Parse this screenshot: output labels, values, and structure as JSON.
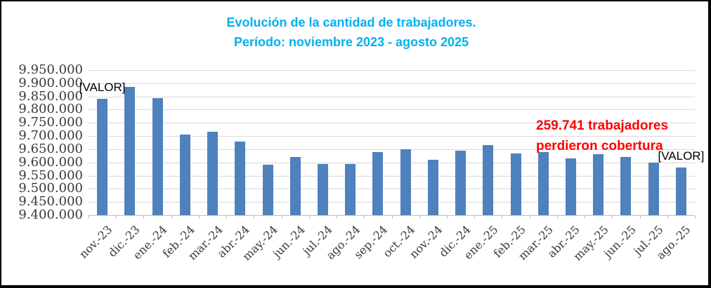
{
  "chart_data": {
    "type": "bar",
    "title_lines": [
      "Evolución de la cantidad de trabajadores.",
      "Período: noviembre 2023 - agosto 2025"
    ],
    "title_color": "#00B0F0",
    "bar_color": "#4F81BD",
    "gridline_color": "#D9D9D9",
    "axis_color": "#BFBFBF",
    "grid": true,
    "legend": "none",
    "categories": [
      "nov.-23",
      "dic.-23",
      "ene.-24",
      "feb.-24",
      "mar.-24",
      "abr.-24",
      "may.-24",
      "jun.-24",
      "jul.-24",
      "ago.-24",
      "sep.-24",
      "oct.-24",
      "nov.-24",
      "dic.-24",
      "ene.-25",
      "feb.-25",
      "mar.-25",
      "abr.-25",
      "may.-25",
      "jun.-25",
      "jul.-25",
      "ago.-25"
    ],
    "values": [
      9840000,
      9885000,
      9845000,
      9705000,
      9715000,
      9680000,
      9590000,
      9620000,
      9595000,
      9595000,
      9640000,
      9650000,
      9610000,
      9645000,
      9665000,
      9635000,
      9640000,
      9615000,
      9630000,
      9620000,
      9600000,
      9580000
    ],
    "ylim": [
      9400000,
      9950000
    ],
    "ytick_step": 50000,
    "ytick_labels": [
      "9.950.000",
      "9.900.000",
      "9.850.000",
      "9.800.000",
      "9.750.000",
      "9.700.000",
      "9.650.000",
      "9.600.000",
      "9.550.000",
      "9.500.000",
      "9.450.000",
      "9.400.000"
    ],
    "data_labels": {
      "placeholder": "[VALOR]",
      "on_points": [
        "nov.-23",
        "ago.-25"
      ]
    },
    "annotation": {
      "lines": [
        "259.741 trabajadores",
        "perdieron cobertura"
      ],
      "color": "#FF0000"
    }
  }
}
